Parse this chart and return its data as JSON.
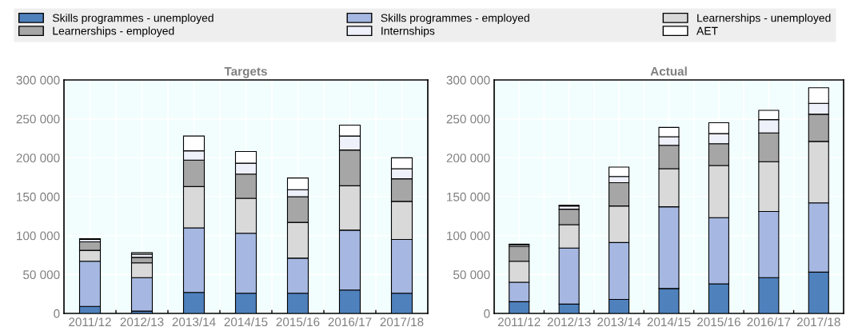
{
  "chart_data": [
    {
      "type": "bar",
      "title": "Targets",
      "stacked": true,
      "legend": "top",
      "grid": true,
      "categories": [
        "2011/12",
        "2012/13",
        "2013/14",
        "2014/15",
        "2015/16",
        "2016/17",
        "2017/18"
      ],
      "ylim": [
        0,
        300000
      ],
      "yticks": [
        {
          "value": 0,
          "label": "0"
        },
        {
          "value": 50000,
          "label": "50 000"
        },
        {
          "value": 100000,
          "label": "100 000"
        },
        {
          "value": 150000,
          "label": "150 000"
        },
        {
          "value": 200000,
          "label": "200 000"
        },
        {
          "value": 250000,
          "label": "250 000"
        },
        {
          "value": 300000,
          "label": "300 000"
        }
      ],
      "series": [
        {
          "name": "Skills programmes - unemployed",
          "color": "#4f81bd",
          "values": [
            9000,
            3000,
            27000,
            26000,
            26000,
            30000,
            26000
          ]
        },
        {
          "name": "Skills programmes - employed",
          "color": "#a6b8e2",
          "values": [
            58000,
            43000,
            83000,
            77000,
            45000,
            77000,
            69000
          ]
        },
        {
          "name": "Learnerships - unemployed",
          "color": "#d9d9d9",
          "values": [
            14000,
            19000,
            53000,
            45000,
            46000,
            57000,
            49000
          ]
        },
        {
          "name": "Learnerships - employed",
          "color": "#a6a6a6",
          "values": [
            11000,
            7000,
            34000,
            31000,
            33000,
            46000,
            29000
          ]
        },
        {
          "name": "Internships",
          "color": "#eef0fa",
          "values": [
            3000,
            4000,
            12000,
            14000,
            9000,
            18000,
            13000
          ]
        },
        {
          "name": "AET",
          "color": "#ffffff",
          "values": [
            1000,
            2000,
            19000,
            15000,
            15000,
            14000,
            14000
          ]
        }
      ]
    },
    {
      "type": "bar",
      "title": "Actual",
      "stacked": true,
      "grid": true,
      "categories": [
        "2011/12",
        "2012/13",
        "2013/14",
        "2014/15",
        "2015/16",
        "2016/17",
        "2017/18"
      ],
      "ylim": [
        0,
        300000
      ],
      "yticks": [
        {
          "value": 0,
          "label": "0"
        },
        {
          "value": 50000,
          "label": "50 000"
        },
        {
          "value": 100000,
          "label": "100 000"
        },
        {
          "value": 150000,
          "label": "150 000"
        },
        {
          "value": 200000,
          "label": "200 000"
        },
        {
          "value": 250000,
          "label": "250 000"
        },
        {
          "value": 300000,
          "label": "300 000"
        }
      ],
      "series": [
        {
          "color": "#4f81bd",
          "values": [
            15000,
            12000,
            18000,
            32000,
            38000,
            46000,
            53000
          ]
        },
        {
          "color": "#a6b8e2",
          "values": [
            25000,
            72000,
            73000,
            105000,
            85000,
            85000,
            89000
          ]
        },
        {
          "color": "#d9d9d9",
          "values": [
            27000,
            30000,
            47000,
            49000,
            67000,
            64000,
            79000
          ]
        },
        {
          "color": "#a6a6a6",
          "values": [
            19000,
            20000,
            30000,
            30000,
            28000,
            37000,
            35000
          ]
        },
        {
          "color": "#eef0fa",
          "values": [
            2000,
            4000,
            8000,
            11000,
            13000,
            17000,
            14000
          ]
        },
        {
          "color": "#ffffff",
          "values": [
            1000,
            1000,
            12000,
            12000,
            14000,
            12000,
            20000
          ]
        }
      ]
    }
  ]
}
